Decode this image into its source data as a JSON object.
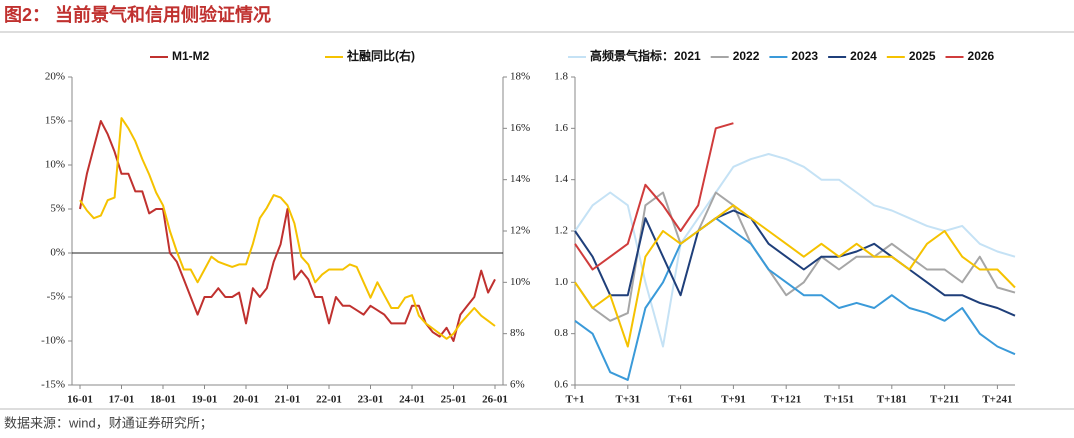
{
  "header": {
    "title": "图2：  当前景气和信用侧验证情况"
  },
  "footer": {
    "source": "数据来源：wind，财通证券研究所；"
  },
  "chart_data": [
    {
      "type": "line",
      "categories": [
        "16-01",
        null,
        null,
        null,
        null,
        null,
        "17-01",
        null,
        null,
        null,
        null,
        null,
        "18-01",
        null,
        null,
        null,
        null,
        null,
        "19-01",
        null,
        null,
        null,
        null,
        null,
        "20-01",
        null,
        null,
        null,
        null,
        null,
        "21-01",
        null,
        null,
        null,
        null,
        null,
        "22-01",
        null,
        null,
        null,
        null,
        null,
        "23-01",
        null,
        null,
        null,
        null,
        null,
        "24-01",
        null,
        null,
        null,
        null,
        null,
        "25-01",
        null,
        null,
        null,
        null,
        null,
        "26-01"
      ],
      "series": [
        {
          "name": "M1-M2",
          "color": "#c0312f",
          "values": [
            5,
            9,
            12,
            15,
            13.5,
            11.5,
            9,
            9,
            7,
            7,
            4.5,
            5,
            5,
            0,
            -1,
            -3,
            -5,
            -7,
            -5,
            -5,
            -4,
            -5,
            -5,
            -4.5,
            -8,
            -4,
            -5,
            -4,
            -1,
            1,
            5,
            -3,
            -2,
            -3,
            -5,
            -5,
            -8,
            -5,
            -6,
            -6,
            -6.5,
            -7,
            -6,
            -6.5,
            -7,
            -8,
            -8,
            -8,
            -6,
            -6,
            -8,
            -9,
            -9.5,
            -8.5,
            -10,
            -7,
            -6,
            -5,
            -2,
            -4.5,
            -3
          ]
        },
        {
          "name": "社融同比(右)",
          "color": "#f5c200",
          "axis": "y2",
          "values": [
            13.2,
            12.8,
            12.5,
            12.6,
            13.2,
            13.3,
            16.4,
            16,
            15.5,
            14.8,
            14.2,
            13.5,
            13,
            12,
            11.2,
            10.5,
            10.5,
            10,
            10.5,
            11,
            10.8,
            10.7,
            10.6,
            10.7,
            10.7,
            11.5,
            12.5,
            12.9,
            13.4,
            13.3,
            13,
            12.3,
            11,
            10.7,
            10,
            10.3,
            10.5,
            10.5,
            10.5,
            10.7,
            10.6,
            10,
            9.4,
            10,
            9.5,
            9,
            9,
            9.4,
            9.5,
            8.7,
            8.4,
            8.2,
            8,
            7.8,
            8,
            8.4,
            8.7,
            9,
            8.7,
            8.5,
            8.3
          ]
        }
      ],
      "ylim": [
        -15,
        20
      ],
      "yticks": [
        {
          "value": -15,
          "label": "-15%"
        },
        {
          "value": -10,
          "label": "-10%"
        },
        {
          "value": -5,
          "label": "-5%"
        },
        {
          "value": 0,
          "label": "0%"
        },
        {
          "value": 5,
          "label": "5%"
        },
        {
          "value": 10,
          "label": "10%"
        },
        {
          "value": 15,
          "label": "15%"
        },
        {
          "value": 20,
          "label": "20%"
        }
      ],
      "y2lim": [
        6,
        18
      ],
      "y2ticks": [
        {
          "value": 6,
          "label": "6%"
        },
        {
          "value": 8,
          "label": "8%"
        },
        {
          "value": 10,
          "label": "10%"
        },
        {
          "value": 12,
          "label": "12%"
        },
        {
          "value": 14,
          "label": "14%"
        },
        {
          "value": 16,
          "label": "16%"
        },
        {
          "value": 18,
          "label": "18%"
        }
      ]
    },
    {
      "type": "line",
      "x": [
        1,
        11,
        21,
        31,
        41,
        51,
        61,
        71,
        81,
        91,
        101,
        111,
        121,
        131,
        141,
        151,
        161,
        171,
        181,
        191,
        201,
        211,
        221,
        231,
        241,
        251
      ],
      "series": [
        {
          "name": "高频景气指标：2021",
          "color": "#c5e2f5",
          "values": [
            1.2,
            1.3,
            1.35,
            1.3,
            1,
            0.75,
            1.15,
            1.25,
            1.35,
            1.45,
            1.48,
            1.5,
            1.48,
            1.45,
            1.4,
            1.4,
            1.35,
            1.3,
            1.28,
            1.25,
            1.22,
            1.2,
            1.22,
            1.15,
            1.12,
            1.1
          ]
        },
        {
          "name": "2022",
          "color": "#a6a6a6",
          "values": [
            1,
            0.9,
            0.85,
            0.88,
            1.3,
            1.35,
            1.15,
            1.2,
            1.35,
            1.3,
            1.15,
            1.05,
            0.95,
            1,
            1.1,
            1.05,
            1.1,
            1.1,
            1.15,
            1.1,
            1.05,
            1.05,
            1,
            1.1,
            0.98,
            0.96
          ]
        },
        {
          "name": "2023",
          "color": "#3a9ad9",
          "values": [
            0.85,
            0.8,
            0.65,
            0.62,
            0.9,
            1,
            1.15,
            1.2,
            1.25,
            1.2,
            1.15,
            1.05,
            1,
            0.95,
            0.95,
            0.9,
            0.92,
            0.9,
            0.95,
            0.9,
            0.88,
            0.85,
            0.9,
            0.8,
            0.75,
            0.72
          ]
        },
        {
          "name": "2024",
          "color": "#1f3f7a",
          "values": [
            1.2,
            1.1,
            0.95,
            0.95,
            1.25,
            1.1,
            0.95,
            1.2,
            1.25,
            1.28,
            1.25,
            1.15,
            1.1,
            1.05,
            1.1,
            1.1,
            1.12,
            1.15,
            1.1,
            1.05,
            1,
            0.95,
            0.95,
            0.92,
            0.9,
            0.87
          ]
        },
        {
          "name": "2025",
          "color": "#f5c200",
          "values": [
            1,
            0.9,
            0.95,
            0.75,
            1.1,
            1.2,
            1.15,
            1.2,
            1.25,
            1.3,
            1.25,
            1.2,
            1.15,
            1.1,
            1.15,
            1.1,
            1.15,
            1.1,
            1.1,
            1.05,
            1.15,
            1.2,
            1.1,
            1.05,
            1.05,
            0.98
          ]
        },
        {
          "name": "2026",
          "color": "#d03c3c",
          "values": [
            1.15,
            1.05,
            1.1,
            1.15,
            1.38,
            1.3,
            1.2,
            1.3,
            1.6,
            1.62,
            null,
            null,
            null,
            null,
            null,
            null,
            null,
            null,
            null,
            null,
            null,
            null,
            null,
            null,
            null,
            null
          ]
        }
      ],
      "xlim": [
        1,
        251
      ],
      "xticks": [
        {
          "value": 1,
          "label": "T+1"
        },
        {
          "value": 31,
          "label": "T+31"
        },
        {
          "value": 61,
          "label": "T+61"
        },
        {
          "value": 91,
          "label": "T+91"
        },
        {
          "value": 121,
          "label": "T+121"
        },
        {
          "value": 151,
          "label": "T+151"
        },
        {
          "value": 181,
          "label": "T+181"
        },
        {
          "value": 211,
          "label": "T+211"
        },
        {
          "value": 241,
          "label": "T+241"
        }
      ],
      "ylim": [
        0.6,
        1.8
      ],
      "yticks": [
        0.6,
        0.8,
        {
          "value": 1,
          "label": "1.0"
        },
        1.2,
        1.4,
        1.6,
        1.8
      ]
    }
  ]
}
